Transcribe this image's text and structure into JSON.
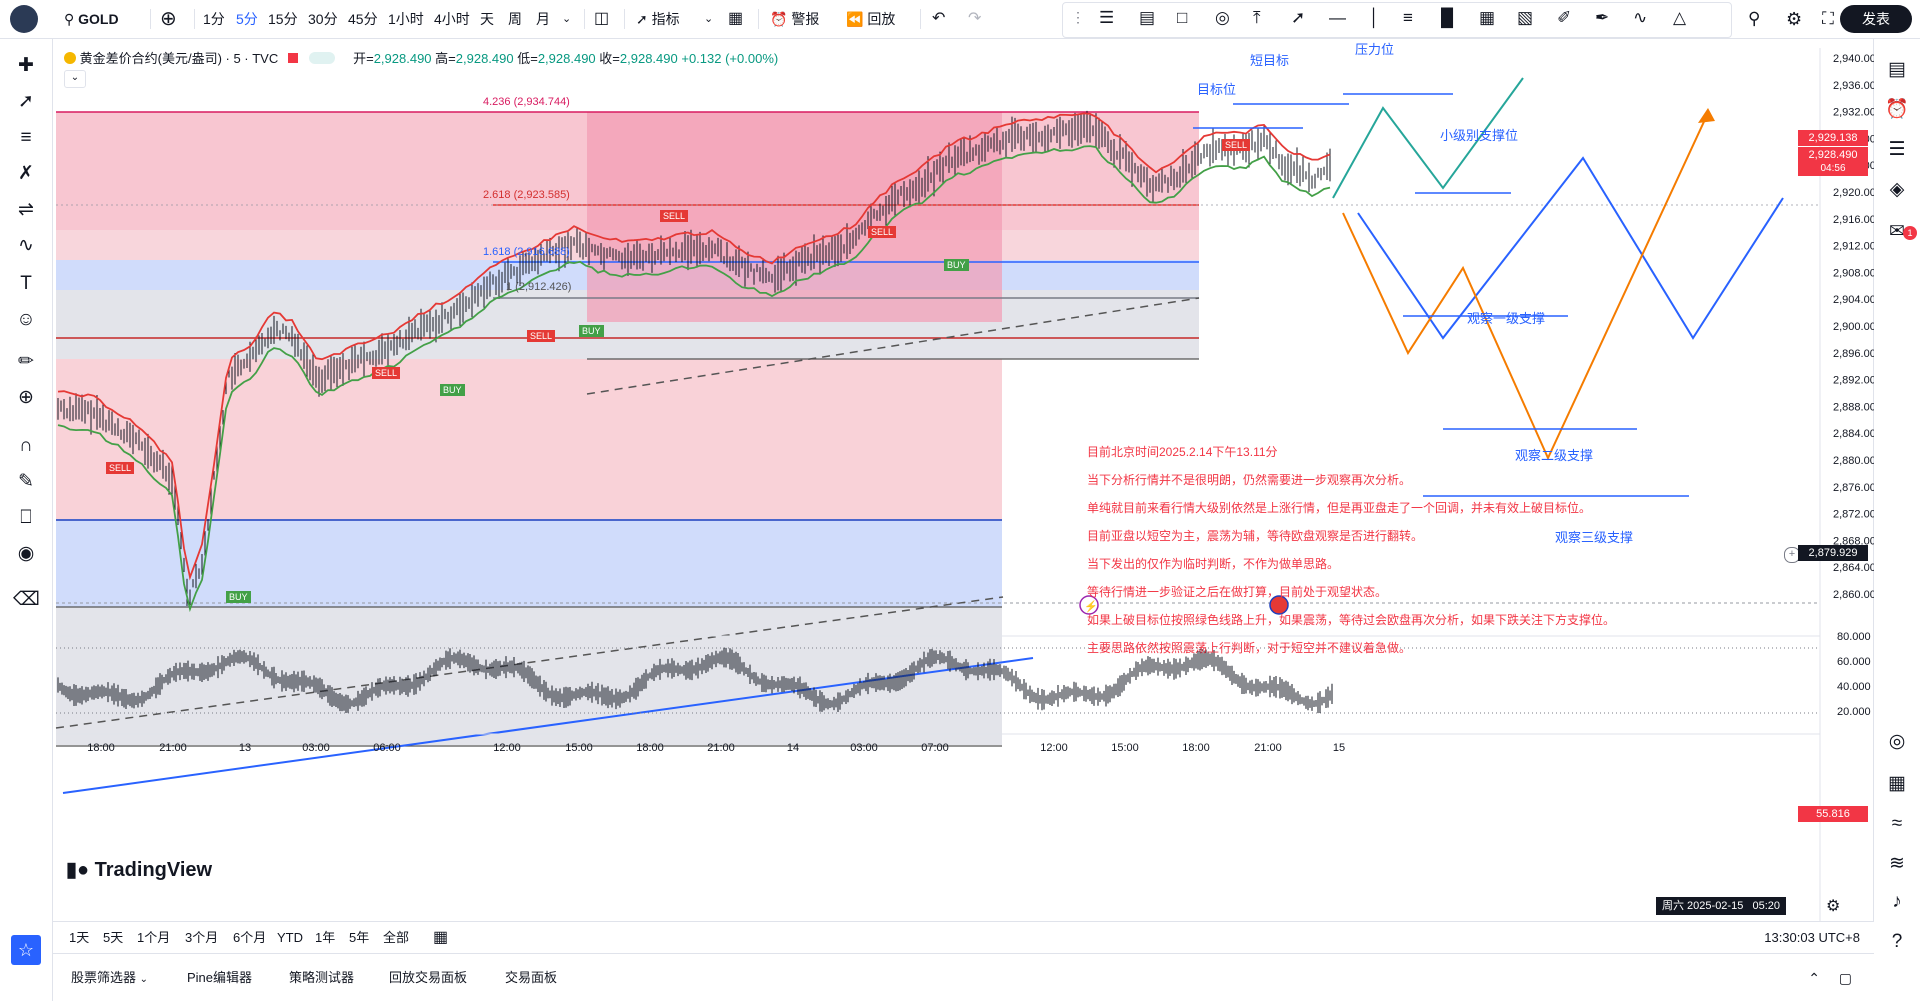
{
  "symbol": "GOLD",
  "toolbar": {
    "intervals": [
      "1分",
      "5分",
      "15分",
      "30分",
      "45分",
      "1小时",
      "4小时",
      "天",
      "周",
      "月"
    ],
    "active_interval": "5分",
    "indicators": "指标",
    "alerts": "警报",
    "replay": "回放",
    "publish": "发表"
  },
  "legend": {
    "title": "黄金差价合约(美元/盎司) · 5 · TVC",
    "open_label": "开=",
    "open": "2,928.490",
    "high_label": "高=",
    "high": "2,928.490",
    "low_label": "低=",
    "low": "2,928.490",
    "close_label": "收=",
    "close": "2,928.490",
    "change": "+0.132 (+0.00%)"
  },
  "price_axis": [
    "2,940.000",
    "2,936.000",
    "2,932.000",
    "2,928.000",
    "2,924.000",
    "2,920.000",
    "2,916.000",
    "2,912.000",
    "2,908.000",
    "2,904.000",
    "2,900.000",
    "2,896.000",
    "2,892.000",
    "2,888.000",
    "2,884.000",
    "2,880.000",
    "2,876.000",
    "2,872.000",
    "2,868.000",
    "2,864.000",
    "2,860.000"
  ],
  "price_tags": {
    "current_1": "2,929.138",
    "current_2": "2,928.490",
    "countdown": "04:56",
    "crosshair": "2,879.929",
    "osc": "55.816"
  },
  "osc_axis": [
    "80.000",
    "60.000",
    "40.000",
    "20.000"
  ],
  "time_axis": [
    "18:00",
    "21:00",
    "13",
    "03:00",
    "06:00",
    "12:00",
    "15:00",
    "18:00",
    "21:00",
    "14",
    "03:00",
    "07:00",
    "12:00",
    "15:00",
    "18:00",
    "21:00",
    "15"
  ],
  "time_cursor": "周六 2025-02-15   05:20",
  "fib": {
    "l4236": "4.236 (2,934.744)",
    "l2618": "2.618 (2,923.585)",
    "l1618": "1.618 (2,916.688)",
    "l1": "1 (2,912.426)"
  },
  "signals": {
    "sell": "SELL",
    "buy": "BUY"
  },
  "labels": {
    "short_target": "短目标",
    "pressure": "压力位",
    "target": "目标位",
    "minor_support": "小级别支撑位",
    "support1": "观察一级支撑",
    "support2": "观察二级支撑",
    "support3": "观察三级支撑"
  },
  "notes": [
    "目前北京时间2025.2.14下午13.11分",
    "当下分析行情并不是很明朗，仍然需要进一步观察再次分析。",
    "单纯就目前来看行情大级别依然是上涨行情，但是再亚盘走了一个回调，并未有效上破目标位。",
    "目前亚盘以短空为主，震荡为辅，等待欧盘观察是否进行翻转。",
    "当下发出的仅作为临时判断，不作为做单思路。",
    "等待行情进一步验证之后在做打算，目前处于观望状态。",
    "如果上破目标位按照绿色线路上升，如果震荡，等待过会欧盘再次分析，如果下跌关注下方支撑位。",
    "主要思路依然按照震荡上行判断，对于短空并不建议着急做。"
  ],
  "ranges": [
    "1天",
    "5天",
    "1个月",
    "3个月",
    "6个月",
    "YTD",
    "1年",
    "5年",
    "全部"
  ],
  "clock": "13:30:03 UTC+8",
  "panels": [
    "股票筛选器",
    "Pine编辑器",
    "策略测试器",
    "回放交易面板",
    "交易面板"
  ],
  "brand": "TradingView",
  "badge_count": "1",
  "colors": {
    "up": "#089981",
    "down": "#f23645",
    "accent": "#2962ff",
    "orange": "#f57c00",
    "teal": "#26a69a"
  }
}
